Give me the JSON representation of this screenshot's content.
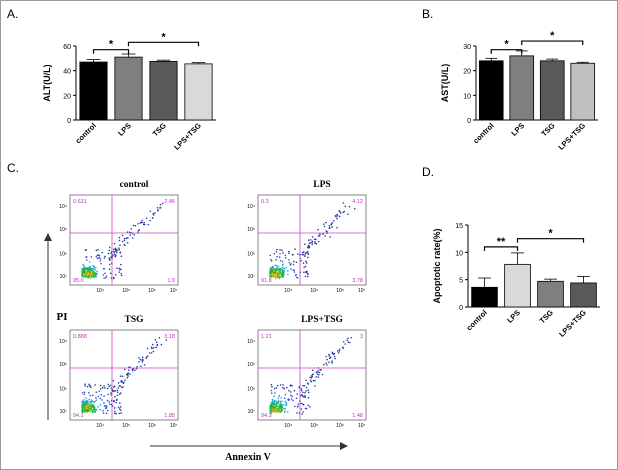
{
  "panels": {
    "A": "A.",
    "B": "B.",
    "C": "C.",
    "D": "D."
  },
  "chart_data": [
    {
      "panel": "A",
      "type": "bar",
      "ylabel": "ALT(U/L)",
      "categories": [
        "control",
        "LPS",
        "TSG",
        "LPS+TSG"
      ],
      "values": [
        47,
        51,
        47.5,
        45.5
      ],
      "errors": [
        2,
        2.5,
        1,
        1
      ],
      "colors": [
        "#000000",
        "#7f7f7f",
        "#595959",
        "#d9d9d9"
      ],
      "ylim": [
        0,
        60
      ],
      "yticks": [
        0,
        20,
        40,
        60
      ],
      "sig": [
        {
          "from": 0,
          "to": 1,
          "label": "*",
          "level": 57
        },
        {
          "from": 1,
          "to": 3,
          "label": "*",
          "level": 63
        }
      ]
    },
    {
      "panel": "B",
      "type": "bar",
      "ylabel": "AST(U/L)",
      "categories": [
        "control",
        "LPS",
        "TSG",
        "LPS+TSG"
      ],
      "values": [
        24,
        26,
        24,
        23
      ],
      "errors": [
        1,
        2,
        0.7,
        0.4
      ],
      "colors": [
        "#000000",
        "#7f7f7f",
        "#595959",
        "#bfbfbf"
      ],
      "ylim": [
        0,
        30
      ],
      "yticks": [
        0,
        10,
        20,
        30
      ],
      "sig": [
        {
          "from": 0,
          "to": 1,
          "label": "*",
          "level": 28.5
        },
        {
          "from": 1,
          "to": 3,
          "label": "*",
          "level": 32
        }
      ]
    },
    {
      "panel": "D",
      "type": "bar",
      "ylabel": "Apoptotic rate(%)",
      "categories": [
        "control",
        "LPS",
        "TSG",
        "LPS+TSG"
      ],
      "values": [
        3.6,
        7.8,
        4.7,
        4.4
      ],
      "errors": [
        1.7,
        2.1,
        0.4,
        1.2
      ],
      "colors": [
        "#000000",
        "#d9d9d9",
        "#7f7f7f",
        "#595959"
      ],
      "ylim": [
        0,
        15
      ],
      "yticks": [
        0,
        5,
        10,
        15
      ],
      "sig": [
        {
          "from": 0,
          "to": 1,
          "label": "**",
          "level": 11
        },
        {
          "from": 1,
          "to": 3,
          "label": "*",
          "level": 12.5
        }
      ]
    }
  ],
  "flow": {
    "ylabel": "PI",
    "xlabel": "Annexin V",
    "tick_labels": [
      "10³",
      "10⁴",
      "10⁵",
      "10⁶",
      "10⁷"
    ],
    "plots": [
      {
        "title": "control",
        "q": [
          "0.631",
          "2.46",
          "95.0",
          "1.9"
        ]
      },
      {
        "title": "LPS",
        "q": [
          "0.3",
          "4.12",
          "91.8",
          "3.78"
        ]
      },
      {
        "title": "TSG",
        "q": [
          "0.888",
          "3.18",
          "94.1",
          "1.85"
        ]
      },
      {
        "title": "LPS+TSG",
        "q": [
          "1.21",
          "3",
          "94.3",
          "1.48"
        ]
      }
    ]
  }
}
